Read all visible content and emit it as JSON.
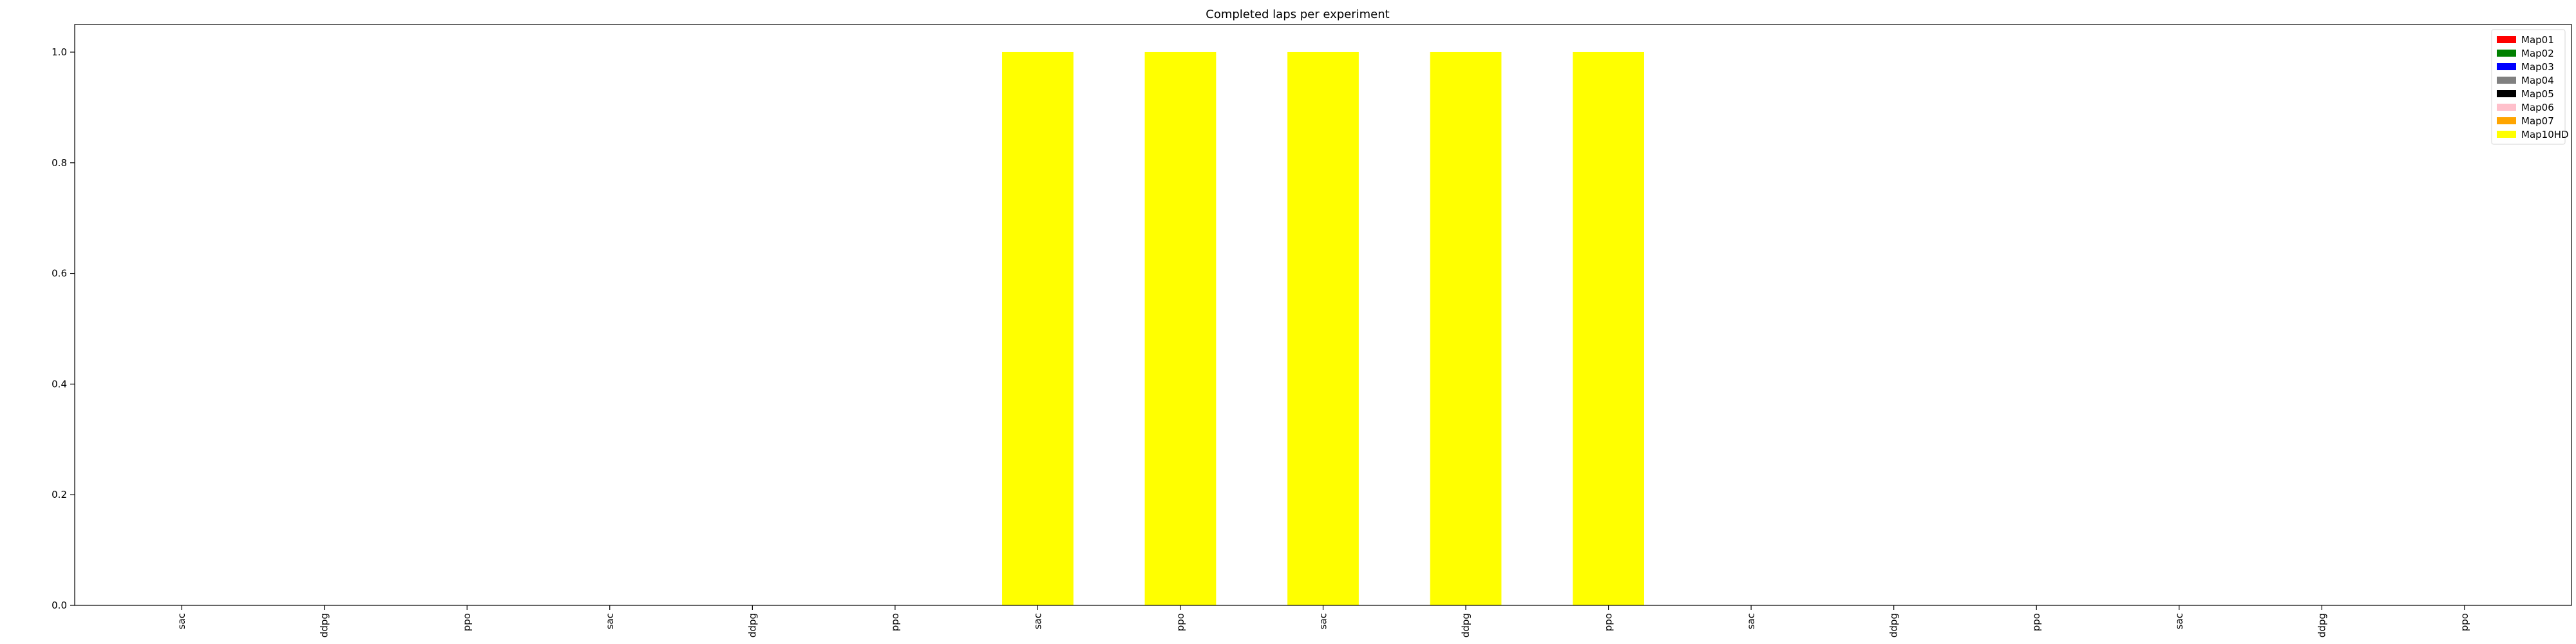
{
  "chart_data": {
    "type": "bar",
    "title": "Completed laps per experiment",
    "xlabel": "",
    "ylabel": "",
    "ylim": [
      0,
      1.05
    ],
    "yticks": [
      0.0,
      0.2,
      0.4,
      0.6,
      0.8,
      1.0
    ],
    "ytick_labels": [
      "0.0",
      "0.2",
      "0.4",
      "0.6",
      "0.8",
      "1.0"
    ],
    "grid": false,
    "legend_position": "top-right",
    "categories": [
      "sac",
      "ddpg",
      "ppo",
      "sac",
      "ddpg",
      "ppo",
      "sac",
      "ppo",
      "sac",
      "ddpg",
      "ppo",
      "sac",
      "ddpg",
      "ppo",
      "sac",
      "ddpg",
      "ppo"
    ],
    "series": [
      {
        "name": "Map01",
        "color": "#ff0000",
        "values": [
          0,
          0,
          0,
          0,
          0,
          0,
          0,
          0,
          0,
          0,
          0,
          0,
          0,
          0,
          0,
          0,
          0
        ]
      },
      {
        "name": "Map02",
        "color": "#008000",
        "values": [
          0,
          0,
          0,
          0,
          0,
          0,
          0,
          0,
          0,
          0,
          0,
          0,
          0,
          0,
          0,
          0,
          0
        ]
      },
      {
        "name": "Map03",
        "color": "#0000ff",
        "values": [
          0,
          0,
          0,
          0,
          0,
          0,
          0,
          0,
          0,
          0,
          0,
          0,
          0,
          0,
          0,
          0,
          0
        ]
      },
      {
        "name": "Map04",
        "color": "#808080",
        "values": [
          0,
          0,
          0,
          0,
          0,
          0,
          0,
          0,
          0,
          0,
          0,
          0,
          0,
          0,
          0,
          0,
          0
        ]
      },
      {
        "name": "Map05",
        "color": "#000000",
        "values": [
          0,
          0,
          0,
          0,
          0,
          0,
          0,
          0,
          0,
          0,
          0,
          0,
          0,
          0,
          0,
          0,
          0
        ]
      },
      {
        "name": "Map06",
        "color": "#ffc0cb",
        "values": [
          0,
          0,
          0,
          0,
          0,
          0,
          0,
          0,
          0,
          0,
          0,
          0,
          0,
          0,
          0,
          0,
          0
        ]
      },
      {
        "name": "Map07",
        "color": "#ffa500",
        "values": [
          0,
          0,
          0,
          0,
          0,
          0,
          0,
          0,
          0,
          0,
          0,
          0,
          0,
          0,
          0,
          0,
          0
        ]
      },
      {
        "name": "Map10HD",
        "color": "#ffff00",
        "values": [
          0,
          0,
          0,
          0,
          0,
          0,
          1,
          1,
          1,
          1,
          1,
          0,
          0,
          0,
          0,
          0,
          0
        ]
      }
    ]
  }
}
